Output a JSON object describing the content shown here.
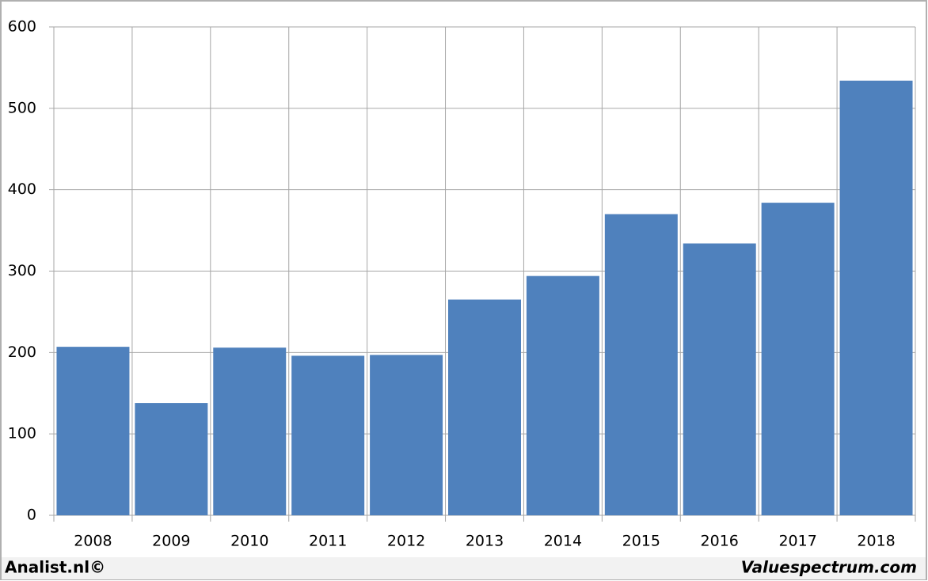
{
  "chart_data": {
    "type": "bar",
    "categories": [
      "2008",
      "2009",
      "2010",
      "2011",
      "2012",
      "2013",
      "2014",
      "2015",
      "2016",
      "2017",
      "2018"
    ],
    "values": [
      207,
      138,
      206,
      196,
      197,
      265,
      294,
      370,
      334,
      384,
      534
    ],
    "color": "#4f81bd",
    "ylim": [
      0,
      600
    ],
    "yticks": [
      0,
      100,
      200,
      300,
      400,
      500,
      600
    ],
    "grid": true
  },
  "footer": {
    "left": "Analist.nl©",
    "right": "Valuespectrum.com"
  }
}
